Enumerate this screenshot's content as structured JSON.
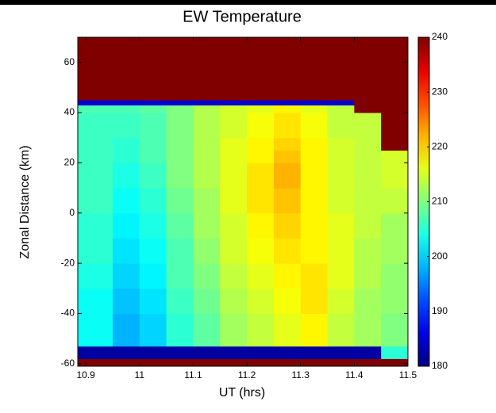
{
  "chart_data": {
    "type": "heatmap",
    "title": "EW Temperature",
    "xlabel": "UT (hrs)",
    "ylabel": "Zonal Distance (km)",
    "xbins": [
      10.885,
      10.95,
      11.0,
      11.05,
      11.1,
      11.15,
      11.2,
      11.25,
      11.3,
      11.35,
      11.4,
      11.45,
      11.5
    ],
    "ybins": [
      -61,
      -58,
      -53,
      -40,
      -30,
      -20,
      -10,
      0,
      10,
      20,
      25,
      30,
      40,
      43,
      45,
      70
    ],
    "values": [
      [
        240,
        240,
        240,
        240,
        240,
        240,
        240,
        240,
        240,
        240,
        240,
        240
      ],
      [
        182,
        182,
        182,
        182,
        182,
        182,
        182,
        182,
        182,
        182,
        182,
        205
      ],
      [
        203,
        198,
        200,
        205,
        208,
        212,
        214,
        216,
        218,
        214,
        212,
        210
      ],
      [
        203,
        199,
        201,
        206,
        209,
        213,
        215,
        217,
        219,
        215,
        212,
        211
      ],
      [
        204,
        200,
        202,
        207,
        210,
        214,
        216,
        218,
        219,
        216,
        213,
        211
      ],
      [
        205,
        201,
        203,
        207,
        211,
        215,
        217,
        219,
        218,
        216,
        213,
        212
      ],
      [
        205,
        202,
        204,
        208,
        212,
        215,
        218,
        220,
        218,
        216,
        214,
        212
      ],
      [
        206,
        203,
        205,
        209,
        212,
        216,
        219,
        221,
        218,
        215,
        214,
        214
      ],
      [
        206,
        204,
        206,
        210,
        213,
        216,
        219,
        222,
        218,
        215,
        214,
        215
      ],
      [
        206,
        205,
        207,
        210,
        213,
        216,
        218,
        221,
        218,
        215,
        214,
        215
      ],
      [
        206,
        205,
        207,
        210,
        213,
        216,
        218,
        220,
        218,
        215,
        214,
        240
      ],
      [
        206,
        206,
        207,
        210,
        213,
        215,
        217,
        219,
        217,
        214,
        214,
        240
      ],
      [
        207,
        207,
        208,
        210,
        213,
        215,
        216,
        218,
        216,
        214,
        240,
        240
      ],
      [
        185,
        185,
        185,
        185,
        185,
        185,
        185,
        185,
        185,
        185,
        240,
        240
      ],
      [
        240,
        240,
        240,
        240,
        240,
        240,
        240,
        240,
        240,
        240,
        240,
        240
      ]
    ],
    "xlim": [
      10.885,
      11.5
    ],
    "ylim": [
      -61,
      70
    ],
    "xticks": [
      10.9,
      11,
      11.1,
      11.2,
      11.3,
      11.4,
      11.5
    ],
    "yticks": [
      -60,
      -40,
      -20,
      0,
      20,
      40,
      60
    ],
    "colormap": "jet",
    "clim": [
      180,
      240
    ],
    "cticks": [
      180,
      190,
      200,
      210,
      220,
      230,
      240
    ]
  }
}
